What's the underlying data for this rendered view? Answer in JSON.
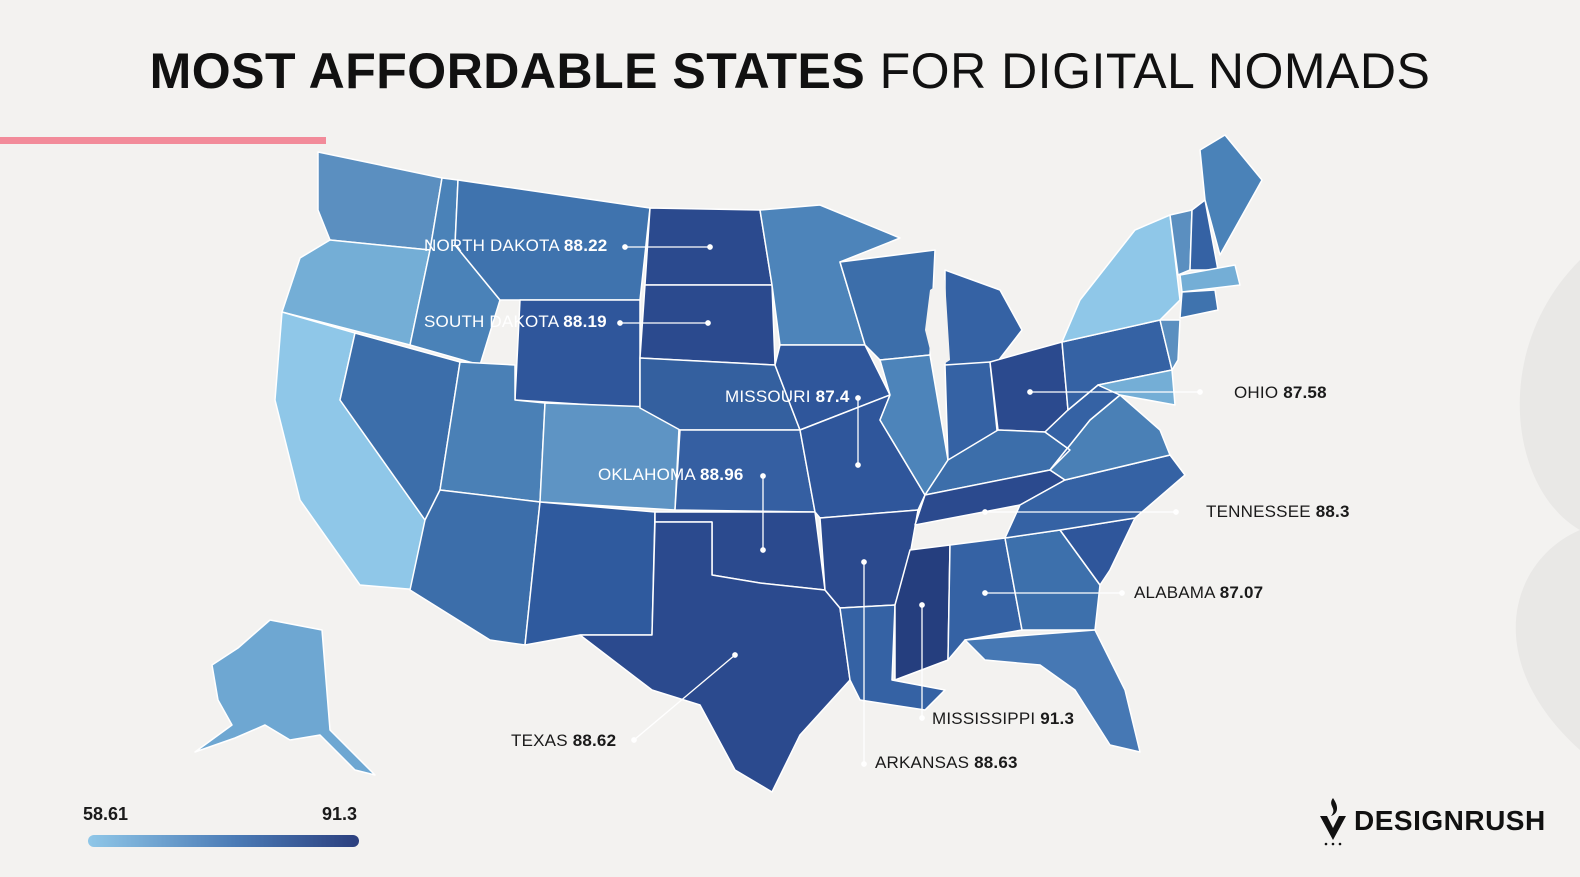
{
  "title": {
    "bold": "MOST AFFORDABLE STATES",
    "light": "FOR DIGITAL NOMADS"
  },
  "legend": {
    "min": "58.61",
    "max": "91.3",
    "min_color": "#8fc7e8",
    "max_color": "#2b3f7e"
  },
  "brand": {
    "name": "DESIGNRUSH",
    "logo_icon": "flame-v-logo"
  },
  "colors": {
    "accent": "#f28b9a",
    "background": "#f3f2f0"
  },
  "callouts": [
    {
      "id": "north-dakota",
      "state": "NORTH DAKOTA",
      "value": "88.22"
    },
    {
      "id": "south-dakota",
      "state": "SOUTH DAKOTA",
      "value": "88.19"
    },
    {
      "id": "missouri",
      "state": "MISSOURI",
      "value": "87.4"
    },
    {
      "id": "oklahoma",
      "state": "OKLAHOMA",
      "value": "88.96"
    },
    {
      "id": "ohio",
      "state": "OHIO",
      "value": "87.58"
    },
    {
      "id": "tennessee",
      "state": "TENNESSEE",
      "value": "88.3"
    },
    {
      "id": "alabama",
      "state": "ALABAMA",
      "value": "87.07"
    },
    {
      "id": "mississippi",
      "state": "MISSISSIPPI",
      "value": "91.3"
    },
    {
      "id": "texas",
      "state": "TEXAS",
      "value": "88.62"
    },
    {
      "id": "arkansas",
      "state": "ARKANSAS",
      "value": "88.63"
    }
  ]
}
